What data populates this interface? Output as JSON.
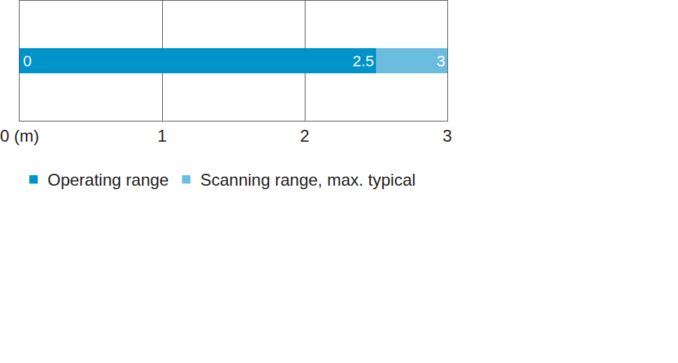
{
  "chart_data": {
    "type": "bar",
    "orientation": "horizontal",
    "categories": [
      null
    ],
    "base": 0,
    "series": [
      {
        "name": "Operating range",
        "color": "#0093c9",
        "values": [
          2.5
        ]
      },
      {
        "name": "Scanning range, max. typical",
        "color": "#6bbde0",
        "values": [
          3
        ]
      }
    ],
    "xlim": [
      0,
      3
    ],
    "xticks": [
      {
        "value": 0,
        "label": "0 (m)"
      },
      1,
      2,
      3
    ],
    "grid": true,
    "data_labels": true,
    "tick_labels": "x",
    "legend": "bottom left"
  }
}
